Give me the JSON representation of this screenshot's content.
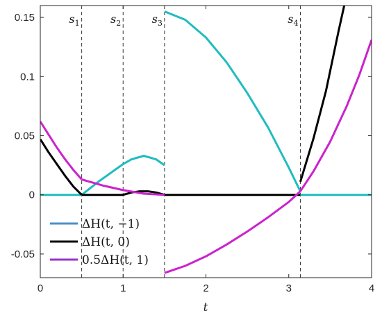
{
  "chart_data": {
    "type": "line",
    "xlabel": "t",
    "ylabel": "",
    "xlim": [
      0,
      4
    ],
    "ylim": [
      -0.07,
      0.16
    ],
    "x_ticks": [
      0,
      1,
      2,
      3,
      4
    ],
    "x_tick_labels": [
      "0",
      "1",
      "2",
      "3",
      "4"
    ],
    "y_ticks": [
      -0.05,
      0,
      0.05,
      0.1,
      0.15
    ],
    "y_tick_labels": [
      "-0.05",
      "0",
      "0.05",
      "0.1",
      "0.15"
    ],
    "grid": false,
    "legend_position": "bottom-left",
    "vertical_lines": [
      {
        "x": 0.5,
        "label": "s",
        "sub": "1"
      },
      {
        "x": 1.0,
        "label": "s",
        "sub": "2"
      },
      {
        "x": 1.5,
        "label": "s",
        "sub": "3"
      },
      {
        "x": 3.14,
        "label": "s",
        "sub": "4"
      }
    ],
    "series": [
      {
        "name": "ΔH(t, −1)",
        "color": "#1fbcc0",
        "legend_color": "#4a90c8",
        "segments": [
          {
            "x": [
              0,
              0.5
            ],
            "y": [
              0,
              0
            ]
          },
          {
            "x": [
              0.5,
              0.7,
              0.9,
              1.0,
              1.1,
              1.25,
              1.4,
              1.5
            ],
            "y": [
              0.0,
              0.011,
              0.021,
              0.026,
              0.03,
              0.033,
              0.03,
              0.025
            ]
          },
          {
            "x": [
              1.5,
              1.75,
              2.0,
              2.25,
              2.5,
              2.75,
              3.0,
              3.14
            ],
            "y": [
              0.155,
              0.148,
              0.133,
              0.112,
              0.086,
              0.057,
              0.023,
              0.003
            ]
          },
          {
            "x": [
              3.14,
              4.0
            ],
            "y": [
              0,
              0
            ]
          }
        ]
      },
      {
        "name": "ΔH(t, 0)",
        "color": "#000000",
        "legend_color": "#000000",
        "segments": [
          {
            "x": [
              0,
              0.1,
              0.2,
              0.3,
              0.4,
              0.5
            ],
            "y": [
              0.047,
              0.036,
              0.026,
              0.016,
              0.007,
              0.0
            ]
          },
          {
            "x": [
              0.5,
              1.0,
              1.1,
              1.2,
              1.25,
              1.3,
              1.4,
              1.5,
              3.14
            ],
            "y": [
              0,
              0,
              0.002,
              0.003,
              0.003,
              0.003,
              0.002,
              0.0,
              0.0
            ]
          },
          {
            "x": [
              3.14,
              3.3,
              3.45,
              3.6,
              3.67
            ],
            "y": [
              0.011,
              0.048,
              0.088,
              0.138,
              0.16
            ]
          }
        ]
      },
      {
        "name": "0.5ΔH(t, 1)",
        "color": "#cc22cc",
        "legend_color": "#9933cc",
        "segments": [
          {
            "x": [
              0,
              0.1,
              0.2,
              0.3,
              0.4,
              0.5
            ],
            "y": [
              0.062,
              0.051,
              0.04,
              0.03,
              0.021,
              0.013
            ]
          },
          {
            "x": [
              0.5,
              0.75,
              1.0,
              1.25,
              1.5
            ],
            "y": [
              0.013,
              0.008,
              0.004,
              0.001,
              0.0
            ]
          },
          {
            "x": [
              1.5,
              1.75,
              2.0,
              2.25,
              2.5,
              2.75,
              3.0,
              3.14
            ],
            "y": [
              -0.066,
              -0.06,
              -0.052,
              -0.042,
              -0.031,
              -0.019,
              -0.006,
              0.003
            ]
          },
          {
            "x": [
              3.14,
              3.3,
              3.5,
              3.7,
              3.85,
              4.0
            ],
            "y": [
              0.003,
              0.02,
              0.045,
              0.075,
              0.101,
              0.131
            ]
          }
        ]
      }
    ]
  }
}
